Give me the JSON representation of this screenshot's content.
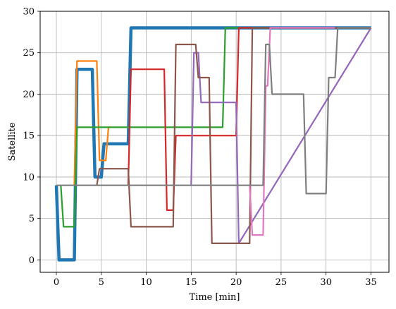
{
  "chart_data": {
    "type": "line",
    "title": "",
    "xlabel": "Time [min]",
    "ylabel": "Satellite",
    "xlim": [
      -1.8,
      37
    ],
    "ylim": [
      -1.5,
      30
    ],
    "xticks": [
      0,
      5,
      10,
      15,
      20,
      25,
      30,
      35
    ],
    "yticks": [
      0,
      5,
      10,
      15,
      20,
      25,
      30
    ],
    "grid": true,
    "legend": "none",
    "series": [
      {
        "color": "#1f77b4",
        "width": 4.5,
        "x": [
          0,
          0.3,
          2,
          2.3,
          4,
          4.3,
          5,
          5.3,
          8,
          8.3,
          35
        ],
        "y": [
          9,
          0,
          0,
          23,
          23,
          10,
          10,
          14,
          14,
          28,
          28
        ]
      },
      {
        "color": "#ff7f0e",
        "width": 2.2,
        "x": [
          2,
          2.3,
          4.5,
          4.8,
          5.5,
          5.8,
          6.1
        ],
        "y": [
          9,
          24,
          24,
          12,
          12,
          16,
          16
        ]
      },
      {
        "color": "#2ca02c",
        "width": 2.2,
        "x": [
          0.5,
          0.8,
          2,
          2.3,
          18.5,
          18.8,
          35
        ],
        "y": [
          9,
          4,
          4,
          16,
          16,
          28,
          28
        ]
      },
      {
        "color": "#d62728",
        "width": 2.2,
        "x": [
          8,
          8.3,
          12,
          12.3,
          13,
          13.3,
          20,
          20.3,
          35
        ],
        "y": [
          9,
          23,
          23,
          6,
          6,
          15,
          15,
          28,
          28
        ]
      },
      {
        "color": "#9467bd",
        "width": 2.2,
        "x": [
          15,
          15.3,
          15.8,
          16.1,
          20,
          20.3,
          35
        ],
        "y": [
          9,
          25,
          25,
          19,
          19,
          2,
          28
        ]
      },
      {
        "color": "#8c564b",
        "width": 2.2,
        "x": [
          4.5,
          4.8,
          8,
          8.3,
          13,
          13.3,
          15.5,
          15.8,
          17,
          17.3,
          21.5,
          21.8,
          35
        ],
        "y": [
          9,
          11,
          11,
          4,
          4,
          26,
          26,
          22,
          22,
          2,
          2,
          28,
          28
        ]
      },
      {
        "color": "#e377c2",
        "width": 2.2,
        "x": [
          21.5,
          21.8,
          23,
          23.3,
          23.5,
          23.8,
          31
        ],
        "y": [
          9,
          3,
          3,
          21,
          21,
          28,
          28
        ]
      },
      {
        "color": "#7f7f7f",
        "width": 2.2,
        "x": [
          0,
          23,
          23.3,
          23.7,
          24,
          27.5,
          27.8,
          30,
          30.3,
          31,
          31.3,
          35
        ],
        "y": [
          9,
          9,
          26,
          26,
          20,
          20,
          8,
          8,
          22,
          22,
          28,
          28
        ]
      }
    ]
  }
}
